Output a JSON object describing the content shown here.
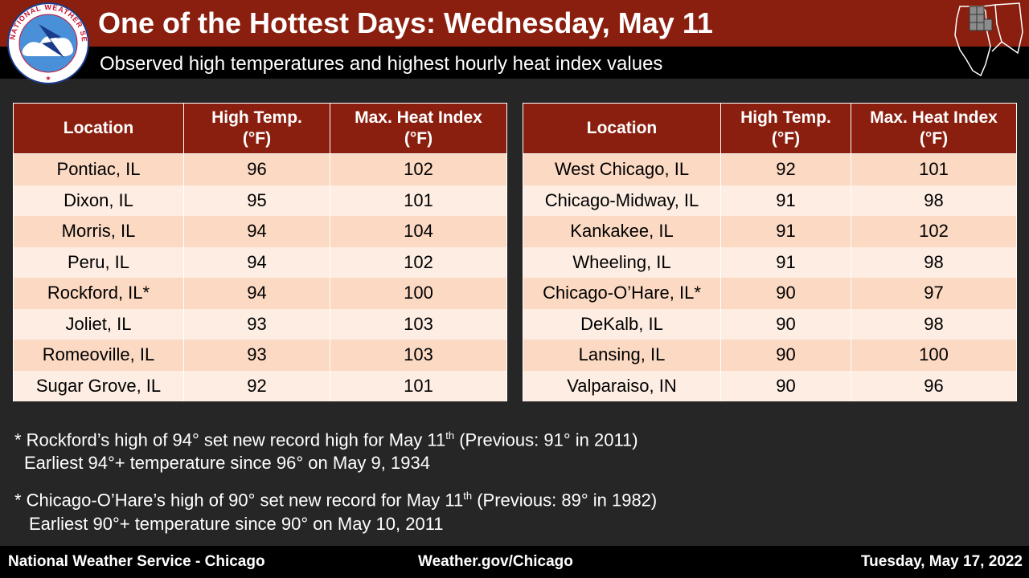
{
  "header": {
    "title": "One of the Hottest Days:  Wednesday, May 11",
    "subtitle": "Observed high temperatures and highest hourly heat index values",
    "logo_text": "NATIONAL WEATHER SERVICE"
  },
  "columns": {
    "location": "Location",
    "high_temp": "High Temp.",
    "high_temp_unit": "(°F)",
    "heat_index": "Max. Heat Index",
    "heat_index_unit": "(°F)"
  },
  "left_table": [
    {
      "location": "Pontiac, IL",
      "high": "96",
      "heat_index": "102"
    },
    {
      "location": "Dixon, IL",
      "high": "95",
      "heat_index": "101"
    },
    {
      "location": "Morris, IL",
      "high": "94",
      "heat_index": "104"
    },
    {
      "location": "Peru, IL",
      "high": "94",
      "heat_index": "102"
    },
    {
      "location": "Rockford, IL*",
      "high": "94",
      "heat_index": "100"
    },
    {
      "location": "Joliet, IL",
      "high": "93",
      "heat_index": "103"
    },
    {
      "location": "Romeoville, IL",
      "high": "93",
      "heat_index": "103"
    },
    {
      "location": "Sugar Grove,  IL",
      "high": "92",
      "heat_index": "101"
    }
  ],
  "right_table": [
    {
      "location": "West Chicago, IL",
      "high": "92",
      "heat_index": "101"
    },
    {
      "location": "Chicago-Midway, IL",
      "high": "91",
      "heat_index": "98"
    },
    {
      "location": "Kankakee, IL",
      "high": "91",
      "heat_index": "102"
    },
    {
      "location": "Wheeling, IL",
      "high": "91",
      "heat_index": "98"
    },
    {
      "location": "Chicago-O’Hare, IL*",
      "high": "90",
      "heat_index": "97"
    },
    {
      "location": "DeKalb, IL",
      "high": "90",
      "heat_index": "98"
    },
    {
      "location": "Lansing, IL",
      "high": "90",
      "heat_index": "100"
    },
    {
      "location": "Valparaiso, IN",
      "high": "90",
      "heat_index": "96"
    }
  ],
  "notes": [
    {
      "line1_pre": "* Rockford’s high of 94° set new record high for May 11",
      "line1_sup": "th",
      "line1_post": " (Previous: 91° in 2011)",
      "line2": "Earliest 94°+ temperature since 96° on May 9, 1934"
    },
    {
      "line1_pre": "* Chicago-O’Hare’s high of 90° set new record for May 11",
      "line1_sup": "th",
      "line1_post": " (Previous: 89° in 1982)",
      "line2": " Earliest 90°+ temperature since 90° on May 10, 2011"
    }
  ],
  "footer": {
    "office": "National  Weather Service - Chicago",
    "website": "Weather.gov/Chicago",
    "date": "Tuesday, May 17, 2022"
  },
  "colors": {
    "header_red": "#8b1f0f",
    "row_dark": "#fbd9c3",
    "row_light": "#fdede3",
    "background": "#262626"
  }
}
